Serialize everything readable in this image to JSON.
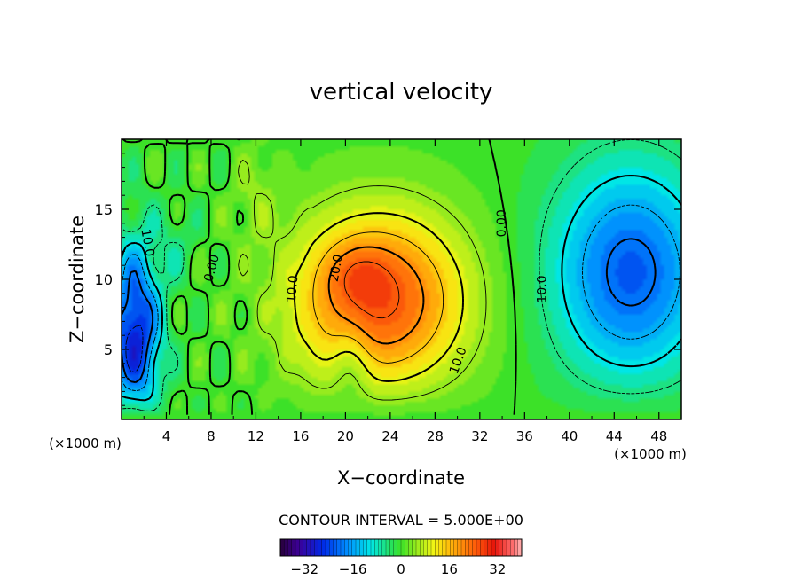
{
  "chart_data": {
    "type": "heatmap",
    "title": "vertical velocity",
    "xlabel": "X−coordinate",
    "ylabel": "Z−coordinate",
    "x_unit": "(×1000 m)",
    "xlim": [
      0,
      50
    ],
    "ylim": [
      0,
      20
    ],
    "x_ticks": [
      "4",
      "8",
      "12",
      "16",
      "20",
      "24",
      "28",
      "32",
      "36",
      "40",
      "44",
      "48"
    ],
    "x_tick_values": [
      4,
      8,
      12,
      16,
      20,
      24,
      28,
      32,
      36,
      40,
      44,
      48
    ],
    "y_ticks": [
      "5",
      "10",
      "15"
    ],
    "y_tick_values": [
      5,
      10,
      15
    ],
    "contour_interval_text": "CONTOUR INTERVAL = 5.000E+00",
    "contour_interval": 5,
    "colorbar_ticks": [
      "−32",
      "−16",
      "0",
      "16",
      "32"
    ],
    "colorbar_tick_values": [
      -32,
      -16,
      0,
      16,
      32
    ],
    "colorbar_range": [
      -40,
      40
    ],
    "contour_labels": [
      {
        "text": "10.0",
        "x": 2.3,
        "z": 12.6,
        "rotate": 80
      },
      {
        "text": "0.00",
        "x": 8.1,
        "z": 10.8,
        "rotate": -75
      },
      {
        "text": "10.0",
        "x": 15.3,
        "z": 9.3,
        "rotate": -85
      },
      {
        "text": "20.0",
        "x": 19.2,
        "z": 10.8,
        "rotate": -80
      },
      {
        "text": "10.0",
        "x": 30.1,
        "z": 4.2,
        "rotate": -70
      },
      {
        "text": "0.00",
        "x": 34.0,
        "z": 14.0,
        "rotate": -90
      },
      {
        "text": "10.0",
        "x": 37.6,
        "z": 9.3,
        "rotate": -90
      }
    ],
    "field_features": [
      {
        "kind": "updraft",
        "x": 23,
        "z": 8.5,
        "sx": 5.5,
        "sz": 4.5,
        "peak": 26
      },
      {
        "kind": "updraft",
        "x": 21,
        "z": 10.5,
        "sx": 2,
        "sz": 1.5,
        "peak": 5
      },
      {
        "kind": "downdraft",
        "x": 45.5,
        "z": 10.5,
        "sx": 5,
        "sz": 5.5,
        "peak": -22
      },
      {
        "kind": "downdraft",
        "x": 1.2,
        "z": 6,
        "sx": 1.6,
        "sz": 4.5,
        "peak": -28
      },
      {
        "kind": "downdraft",
        "x": 20.5,
        "z": 4,
        "sx": 1.2,
        "sz": 2,
        "peak": -7
      },
      {
        "kind": "updraft",
        "x": 12,
        "z": 16,
        "sx": 1.5,
        "sz": 2.5,
        "peak": 4
      },
      {
        "kind": "downdraft",
        "x": 5,
        "z": 12.5,
        "sx": 1.2,
        "sz": 1.8,
        "peak": -4
      }
    ]
  }
}
